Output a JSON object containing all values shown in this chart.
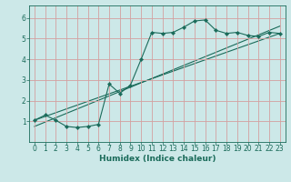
{
  "xlabel": "Humidex (Indice chaleur)",
  "bg_color": "#cce8e8",
  "grid_color": "#d4a0a0",
  "line_color": "#1a6b5a",
  "xlim": [
    -0.5,
    23.5
  ],
  "ylim": [
    0,
    6.6
  ],
  "xticks": [
    0,
    1,
    2,
    3,
    4,
    5,
    6,
    7,
    8,
    9,
    10,
    11,
    12,
    13,
    14,
    15,
    16,
    17,
    18,
    19,
    20,
    21,
    22,
    23
  ],
  "yticks": [
    1,
    2,
    3,
    4,
    5,
    6
  ],
  "curve_x": [
    0,
    1,
    2,
    3,
    4,
    5,
    6,
    7,
    8,
    9,
    10,
    11,
    12,
    13,
    14,
    15,
    16,
    17,
    18,
    19,
    20,
    21,
    22,
    23
  ],
  "curve_y": [
    1.05,
    1.3,
    1.05,
    0.75,
    0.7,
    0.75,
    0.85,
    2.8,
    2.35,
    2.75,
    4.0,
    5.3,
    5.25,
    5.3,
    5.55,
    5.85,
    5.9,
    5.4,
    5.25,
    5.3,
    5.15,
    5.1,
    5.3,
    5.25
  ],
  "line1_x": [
    0,
    23
  ],
  "line1_y": [
    1.05,
    5.25
  ],
  "line2_x": [
    0,
    23
  ],
  "line2_y": [
    0.75,
    5.6
  ],
  "marker_size": 2.2,
  "line_width": 0.8,
  "tick_fontsize": 5.5,
  "xlabel_fontsize": 6.5
}
